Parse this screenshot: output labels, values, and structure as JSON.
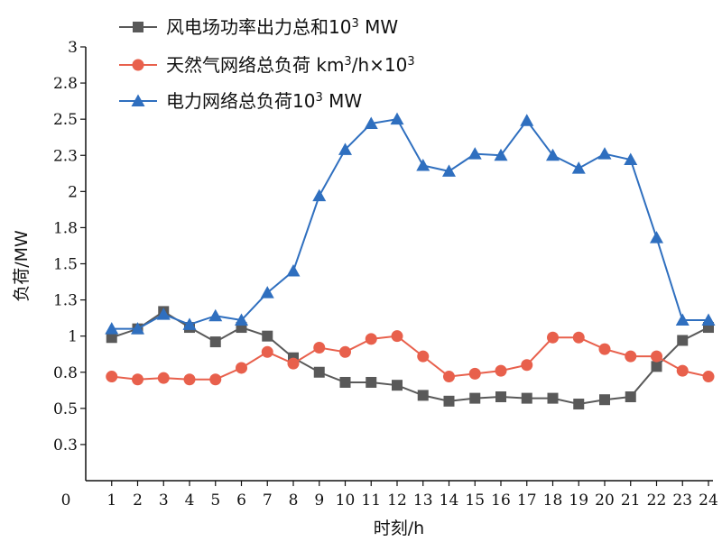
{
  "chart_data": {
    "type": "line",
    "xlabel": "时刻/h",
    "ylabel": "负荷/MW",
    "ylim": [
      0,
      3.0
    ],
    "xlim": [
      0,
      24
    ],
    "yticks": [
      0.3,
      0.5,
      0.8,
      1.0,
      1.3,
      1.5,
      1.8,
      2.0,
      2.3,
      2.5,
      2.8,
      3.0
    ],
    "ytick_values": [
      0.25,
      0.5,
      0.75,
      1.0,
      1.25,
      1.5,
      1.75,
      2.0,
      2.25,
      2.5,
      2.75,
      3.0
    ],
    "x_origin_label": "0",
    "x": [
      1,
      2,
      3,
      4,
      5,
      6,
      7,
      8,
      9,
      10,
      11,
      12,
      13,
      14,
      15,
      16,
      17,
      18,
      19,
      20,
      21,
      22,
      23,
      24
    ],
    "legend_position": "top-left",
    "grid": false,
    "series": [
      {
        "name_parts": [
          "风电场功率出力总和10",
          "3",
          " MW"
        ],
        "color": "#595959",
        "marker": "square",
        "values": [
          0.99,
          1.05,
          1.17,
          1.06,
          0.96,
          1.06,
          1.0,
          0.85,
          0.75,
          0.68,
          0.68,
          0.66,
          0.59,
          0.55,
          0.57,
          0.58,
          0.57,
          0.57,
          0.53,
          0.56,
          0.58,
          0.79,
          0.97,
          1.06
        ]
      },
      {
        "name_parts": [
          "天然气网络总负荷 km",
          "3",
          "/h×10",
          "3"
        ],
        "color": "#e8604c",
        "marker": "circle",
        "values": [
          0.72,
          0.7,
          0.71,
          0.7,
          0.7,
          0.78,
          0.89,
          0.81,
          0.92,
          0.89,
          0.98,
          1.0,
          0.86,
          0.72,
          0.74,
          0.76,
          0.8,
          0.99,
          0.99,
          0.91,
          0.86,
          0.86,
          0.76,
          0.72
        ]
      },
      {
        "name_parts": [
          "电力网络总负荷10",
          "3",
          " MW"
        ],
        "color": "#2f6fbf",
        "marker": "triangle",
        "values": [
          1.05,
          1.05,
          1.15,
          1.08,
          1.14,
          1.11,
          1.3,
          1.45,
          1.97,
          2.29,
          2.47,
          2.5,
          2.18,
          2.14,
          2.26,
          2.25,
          2.49,
          2.25,
          2.16,
          2.26,
          2.22,
          1.68,
          1.11,
          1.11
        ]
      }
    ]
  }
}
